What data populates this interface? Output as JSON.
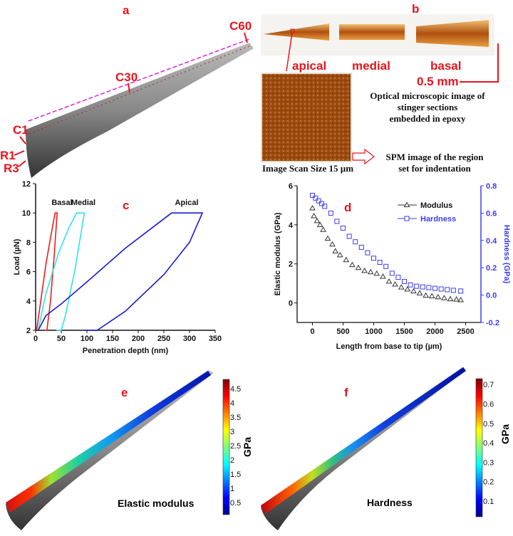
{
  "panel_letters": {
    "a": "a",
    "b": "b",
    "c": "c",
    "d": "d",
    "e": "e",
    "f": "f"
  },
  "panel_a": {
    "labels": {
      "c60": "C60",
      "c30": "C30",
      "c1": "C1",
      "r1": "R1",
      "r3": "R3"
    }
  },
  "panel_b": {
    "section_labels": {
      "apical": "apical",
      "medial": "medial",
      "basal": "basal"
    },
    "scale_bar": "0.5 mm",
    "optical_caption": [
      "Optical microscopic image of",
      "stinger sections",
      "embedded in epoxy"
    ],
    "spm_caption": [
      "SPM image of the region",
      "set for indentation"
    ],
    "scan_size": "Image Scan Size 15 µm"
  },
  "colors": {
    "basal": "#ee1c1c",
    "medial": "#2fe4ea",
    "apical": "#1a1ad0",
    "modulus": "#333333",
    "hardness": "#3b3bf0",
    "label_red": "#e8141c"
  },
  "chart_data": [
    {
      "id": "c",
      "type": "line",
      "xlabel": "Penetration depth (nm)",
      "ylabel": "Load (µN)",
      "xlim": [
        0,
        350
      ],
      "ylim": [
        2,
        12
      ],
      "xticks": [
        0,
        50,
        100,
        150,
        200,
        250,
        300,
        350
      ],
      "yticks": [
        2,
        4,
        6,
        8,
        10,
        12
      ],
      "series": [
        {
          "name": "Basal",
          "color": "#ee1c1c",
          "points": [
            [
              2,
              2
            ],
            [
              10,
              4
            ],
            [
              20,
              6.5
            ],
            [
              30,
              8.5
            ],
            [
              38,
              10
            ],
            [
              42,
              10
            ],
            [
              36,
              7
            ],
            [
              29,
              4
            ],
            [
              22,
              2
            ],
            [
              17,
              2
            ]
          ]
        },
        {
          "name": "Medial",
          "color": "#2fe4ea",
          "points": [
            [
              5,
              2
            ],
            [
              20,
              4.5
            ],
            [
              45,
              7.3
            ],
            [
              65,
              9
            ],
            [
              80,
              10
            ],
            [
              95,
              10
            ],
            [
              76,
              6
            ],
            [
              58,
              3
            ],
            [
              50,
              2
            ],
            [
              40,
              2
            ]
          ]
        },
        {
          "name": "Apical",
          "color": "#1a1ad0",
          "points": [
            [
              5,
              2
            ],
            [
              20,
              3
            ],
            [
              50,
              3.8
            ],
            [
              100,
              5.3
            ],
            [
              175,
              7.6
            ],
            [
              250,
              9.6
            ],
            [
              265,
              10
            ],
            [
              325,
              10
            ],
            [
              300,
              8
            ],
            [
              250,
              5.8
            ],
            [
              175,
              3.3
            ],
            [
              120,
              2
            ],
            [
              95,
              2
            ]
          ]
        }
      ]
    },
    {
      "id": "d",
      "type": "scatter",
      "xlabel": "Length from base to tip (µm)",
      "ylabel": "Elastic modulus (GPa)",
      "y2label": "Hardness (GPa)",
      "xlim": [
        -250,
        2750
      ],
      "ylim": [
        -1,
        6
      ],
      "y2lim": [
        -0.2,
        0.8
      ],
      "xticks": [
        0,
        500,
        1000,
        1500,
        2000,
        2500
      ],
      "yticks": [
        0,
        2,
        4,
        6
      ],
      "y2ticks": [
        "-0.2",
        "0.0",
        "0.2",
        "0.4",
        "0.6",
        "0.8"
      ],
      "legend": "top-right",
      "series": [
        {
          "name": "Modulus",
          "axis": "left",
          "marker": "triangle",
          "color": "#333333",
          "points": [
            [
              0,
              4.85
            ],
            [
              25,
              4.45
            ],
            [
              75,
              4.2
            ],
            [
              125,
              4.0
            ],
            [
              175,
              3.75
            ],
            [
              250,
              3.3
            ],
            [
              325,
              3.0
            ],
            [
              375,
              2.65
            ],
            [
              450,
              2.45
            ],
            [
              550,
              2.2
            ],
            [
              650,
              1.95
            ],
            [
              750,
              1.8
            ],
            [
              850,
              1.65
            ],
            [
              950,
              1.58
            ],
            [
              1050,
              1.5
            ],
            [
              1150,
              1.35
            ],
            [
              1250,
              1.1
            ],
            [
              1350,
              0.95
            ],
            [
              1450,
              0.8
            ],
            [
              1550,
              0.7
            ],
            [
              1650,
              0.6
            ],
            [
              1750,
              0.5
            ],
            [
              1850,
              0.38
            ],
            [
              1950,
              0.35
            ],
            [
              2050,
              0.3
            ],
            [
              2150,
              0.25
            ],
            [
              2250,
              0.2
            ],
            [
              2350,
              0.18
            ],
            [
              2420,
              0.15
            ]
          ]
        },
        {
          "name": "Hardness",
          "axis": "right",
          "marker": "square",
          "color": "#3b3bf0",
          "points": [
            [
              0,
              0.73
            ],
            [
              50,
              0.71
            ],
            [
              100,
              0.69
            ],
            [
              150,
              0.67
            ],
            [
              200,
              0.65
            ],
            [
              300,
              0.6
            ],
            [
              400,
              0.54
            ],
            [
              500,
              0.49
            ],
            [
              600,
              0.43
            ],
            [
              700,
              0.39
            ],
            [
              800,
              0.35
            ],
            [
              900,
              0.31
            ],
            [
              1000,
              0.27
            ],
            [
              1100,
              0.24
            ],
            [
              1200,
              0.21
            ],
            [
              1300,
              0.16
            ],
            [
              1400,
              0.13
            ],
            [
              1500,
              0.1
            ],
            [
              1600,
              0.075
            ],
            [
              1700,
              0.065
            ],
            [
              1800,
              0.06
            ],
            [
              1900,
              0.055
            ],
            [
              2000,
              0.05
            ],
            [
              2100,
              0.045
            ],
            [
              2200,
              0.04
            ],
            [
              2300,
              0.035
            ],
            [
              2420,
              0.03
            ]
          ]
        }
      ]
    }
  ],
  "panel_e": {
    "title": "Elastic modulus",
    "unit": "GPa",
    "colorbar_ticks": [
      "0.5",
      "1",
      "1.5",
      "2",
      "2.5",
      "3",
      "3.5",
      "4",
      "4.5"
    ],
    "range": [
      0.15,
      4.8
    ]
  },
  "panel_f": {
    "title": "Hardness",
    "unit": "GPa",
    "colorbar_ticks": [
      "0.1",
      "0.2",
      "0.3",
      "0.4",
      "0.5",
      "0.6",
      "0.7"
    ],
    "range": [
      0.02,
      0.73
    ]
  }
}
